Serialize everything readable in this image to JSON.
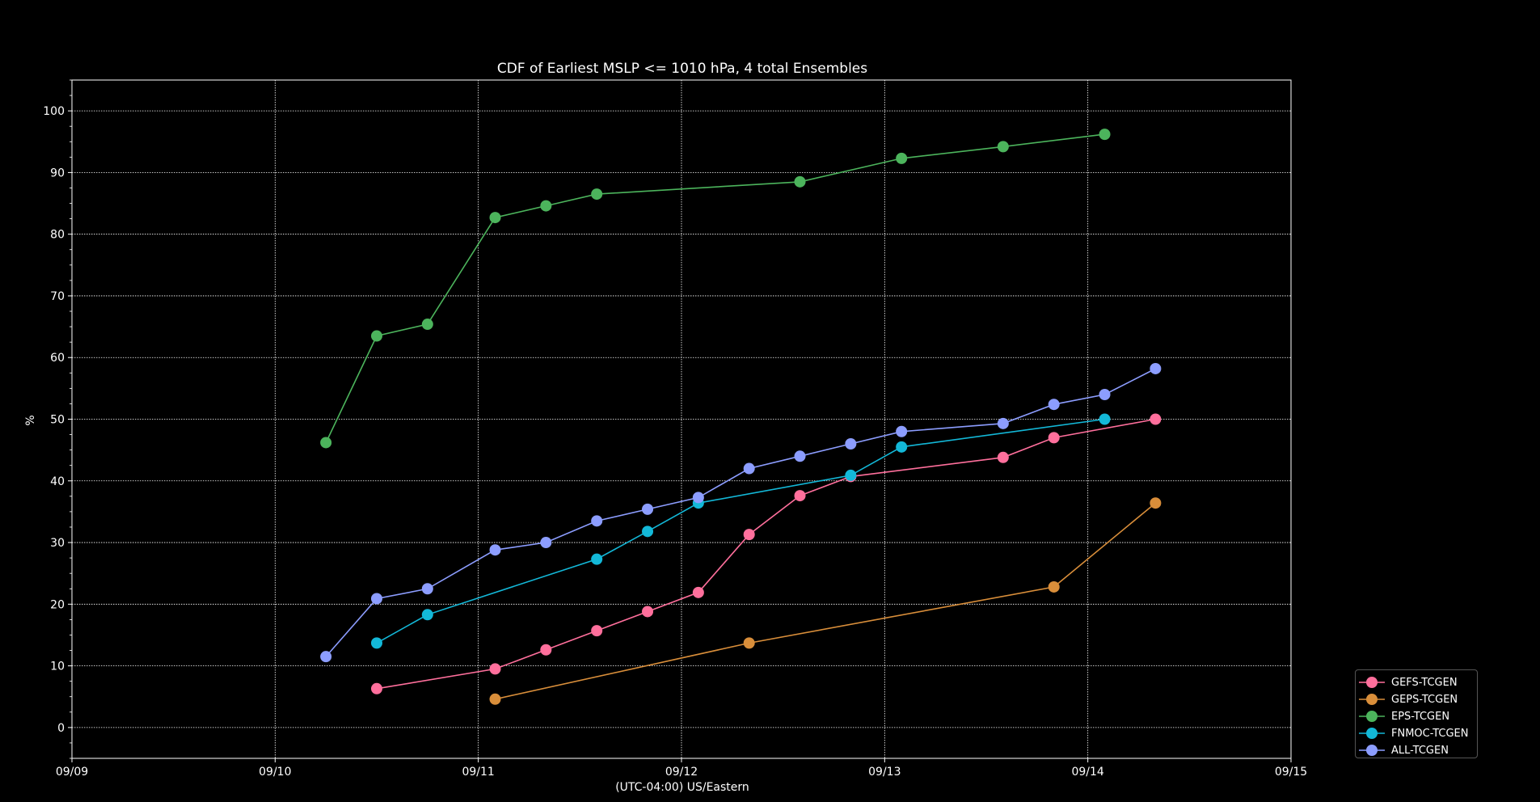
{
  "chart_data": {
    "type": "line",
    "title": "CDF of Earliest MSLP <= 1010 hPa, 4 total Ensembles",
    "xlabel": "(UTC-04:00) US/Eastern",
    "ylabel": "%",
    "x_ticks": [
      "09/09",
      "09/10",
      "09/11",
      "09/12",
      "09/13",
      "09/14",
      "09/15"
    ],
    "y_ticks": [
      0,
      10,
      20,
      30,
      40,
      50,
      60,
      70,
      80,
      90,
      100
    ],
    "xlim": [
      0,
      6
    ],
    "ylim": [
      -5,
      105
    ],
    "grid": true,
    "legend_position": "bottom-right outside",
    "series": [
      {
        "name": "GEFS-TCGEN",
        "color": "#ff6f9c",
        "x": [
          1.5,
          2.083,
          2.333,
          2.583,
          2.833,
          3.083,
          3.333,
          3.583,
          3.833,
          4.583,
          4.833,
          5.333
        ],
        "y": [
          6.3,
          9.5,
          12.6,
          15.7,
          18.8,
          21.9,
          31.3,
          37.6,
          40.7,
          43.8,
          47.0,
          50.0
        ]
      },
      {
        "name": "GEPS-TCGEN",
        "color": "#d98e3a",
        "x": [
          2.083,
          3.333,
          4.833,
          5.333
        ],
        "y": [
          4.6,
          13.7,
          22.8,
          36.4
        ]
      },
      {
        "name": "EPS-TCGEN",
        "color": "#4cb45c",
        "x": [
          1.25,
          1.5,
          1.75,
          2.083,
          2.333,
          2.583,
          3.583,
          4.083,
          4.583,
          5.083
        ],
        "y": [
          46.2,
          63.5,
          65.4,
          82.7,
          84.6,
          86.5,
          88.5,
          92.3,
          94.2,
          96.2
        ]
      },
      {
        "name": "FNMOC-TCGEN",
        "color": "#13b8d8",
        "x": [
          1.5,
          1.75,
          2.583,
          2.833,
          3.083,
          3.833,
          4.083,
          5.083
        ],
        "y": [
          13.7,
          18.3,
          27.3,
          31.8,
          36.4,
          40.9,
          45.5,
          50.0
        ]
      },
      {
        "name": "ALL-TCGEN",
        "color": "#8c9dff",
        "x": [
          1.25,
          1.5,
          1.75,
          2.083,
          2.333,
          2.583,
          2.833,
          3.083,
          3.333,
          3.583,
          3.833,
          4.083,
          4.583,
          4.833,
          5.083,
          5.333
        ],
        "y": [
          11.5,
          20.9,
          22.5,
          28.8,
          30.0,
          33.5,
          35.4,
          37.3,
          42.0,
          44.0,
          46.0,
          48.0,
          49.3,
          52.4,
          54.0,
          58.2
        ]
      }
    ]
  }
}
